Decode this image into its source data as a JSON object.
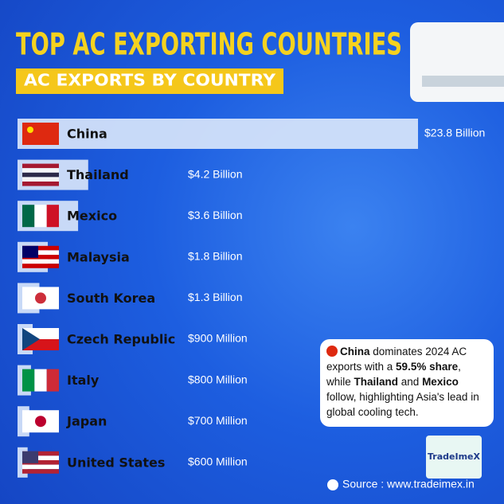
{
  "chart_data": {
    "type": "bar",
    "orientation": "horizontal",
    "title": "TOP AC EXPORTING COUNTRIES",
    "subtitle": "AC EXPORTS BY COUNTRY",
    "categories": [
      "China",
      "Thailand",
      "Mexico",
      "Malaysia",
      "South Korea",
      "Czech Republic",
      "Italy",
      "Japan",
      "United States"
    ],
    "values": [
      23800000000,
      4200000000,
      3600000000,
      1800000000,
      1300000000,
      900000000,
      800000000,
      700000000,
      600000000
    ],
    "value_labels": [
      "$23.8 Billion",
      "$4.2 Billion",
      "$3.6 Billion",
      "$1.8 Billion",
      "$1.3 Billion",
      "$900 Million",
      "$800 Million",
      "$700 Million",
      "$600 Million"
    ],
    "color": "#dce8fb",
    "annotation": [
      "China",
      " dominates 2024 AC exports with a ",
      "59.5% share",
      ", while ",
      "Thailand",
      " and ",
      "Mexico",
      " follow, highlighting Asia's lead in global cooling tech."
    ],
    "logo": "TradeImeX",
    "source": "Source : www.tradeimex.in"
  }
}
